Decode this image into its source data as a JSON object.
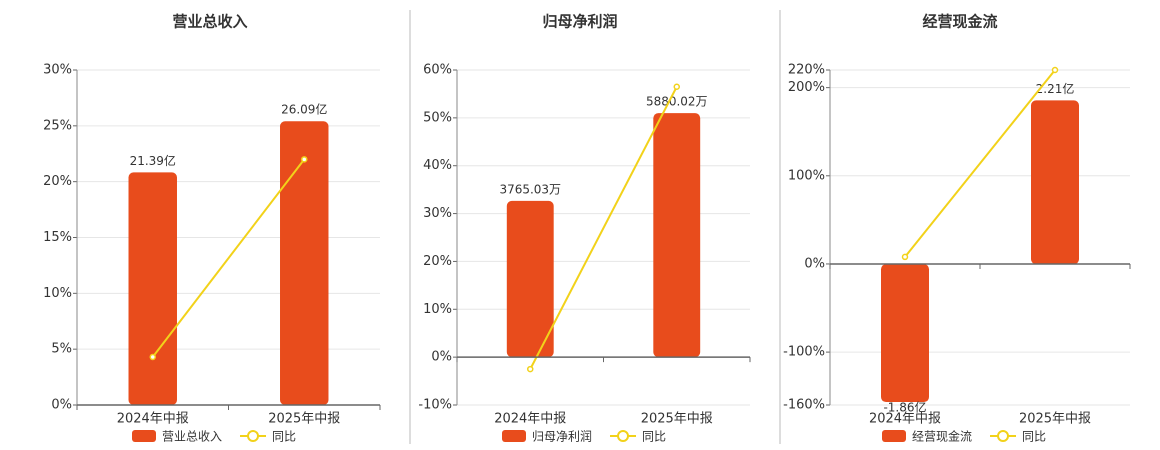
{
  "chart_data": [
    {
      "type": "bar",
      "title": "营业总收入",
      "categories": [
        "2024年中报",
        "2025年中报"
      ],
      "series": [
        {
          "name": "营业总收入",
          "type": "bar",
          "axis": "y2",
          "color": "#e84c1c",
          "values": [
            21.39,
            26.09
          ],
          "value_labels": [
            "21.39亿",
            "26.09亿"
          ]
        },
        {
          "name": "同比",
          "type": "line",
          "color": "#f2d21a",
          "values": [
            4.3,
            22
          ]
        }
      ],
      "ylim": [
        0,
        30
      ],
      "yticks": [
        {
          "value": 0,
          "label": "0%"
        },
        {
          "value": 5,
          "label": "5%"
        },
        {
          "value": 10,
          "label": "10%"
        },
        {
          "value": 15,
          "label": "15%"
        },
        {
          "value": 20,
          "label": "20%"
        },
        {
          "value": 25,
          "label": "25%"
        },
        {
          "value": 30,
          "label": "30%"
        }
      ],
      "y2lim": [
        0,
        30.8
      ],
      "grid": true
    },
    {
      "type": "bar",
      "title": "归母净利润",
      "categories": [
        "2024年中报",
        "2025年中报"
      ],
      "series": [
        {
          "name": "归母净利润",
          "type": "bar",
          "axis": "y2",
          "color": "#e84c1c",
          "values": [
            3765.03,
            5880.02
          ],
          "value_labels": [
            "3765.03万",
            "5880.02万"
          ]
        },
        {
          "name": "同比",
          "type": "line",
          "color": "#f2d21a",
          "values": [
            -2.5,
            56.5
          ]
        }
      ],
      "ylim": [
        -10,
        60
      ],
      "yticks": [
        {
          "value": -10,
          "label": "-10%"
        },
        {
          "value": 0,
          "label": "0%"
        },
        {
          "value": 10,
          "label": "10%"
        },
        {
          "value": 20,
          "label": "20%"
        },
        {
          "value": 30,
          "label": "30%"
        },
        {
          "value": 40,
          "label": "40%"
        },
        {
          "value": 50,
          "label": "50%"
        },
        {
          "value": 60,
          "label": "60%"
        }
      ],
      "y2lim": [
        -1155,
        6920
      ],
      "grid": true
    },
    {
      "type": "bar",
      "title": "经营现金流",
      "categories": [
        "2024年中报",
        "2025年中报"
      ],
      "series": [
        {
          "name": "经营现金流",
          "type": "bar",
          "axis": "y2",
          "color": "#e84c1c",
          "values": [
            -1.86,
            2.21
          ],
          "value_labels": [
            "-1.86亿",
            "2.21亿"
          ]
        },
        {
          "name": "同比",
          "type": "line",
          "color": "#f2d21a",
          "values": [
            8,
            220
          ]
        }
      ],
      "ylim": [
        -160,
        220
      ],
      "yticks": [
        {
          "value": -160,
          "label": "-160%"
        },
        {
          "value": -100,
          "label": "-100%"
        },
        {
          "value": 0,
          "label": "0%"
        },
        {
          "value": 100,
          "label": "100%"
        },
        {
          "value": 200,
          "label": "200%"
        },
        {
          "value": 220,
          "label": "220%"
        }
      ],
      "y2lim": [
        -1.9,
        2.62
      ],
      "grid": true
    }
  ]
}
